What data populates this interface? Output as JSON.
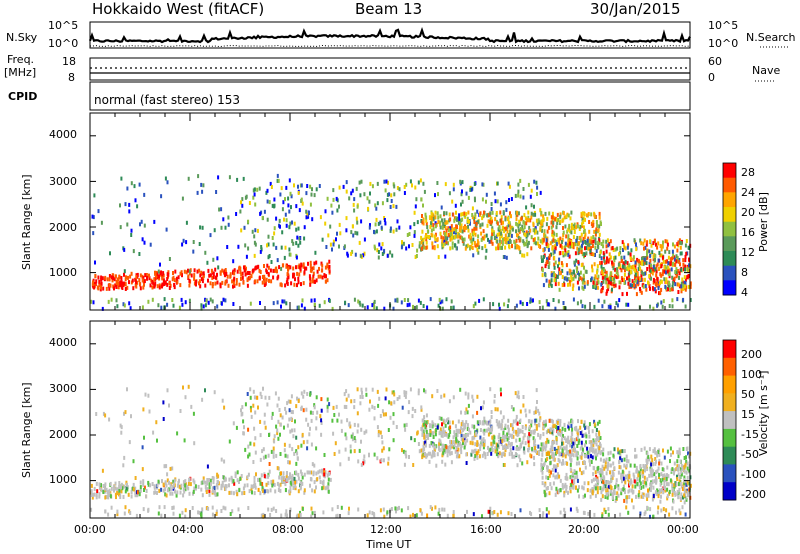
{
  "header": {
    "station": "Hokkaido West (fitACF)",
    "beam": "Beam 13",
    "date": "30/Jan/2015"
  },
  "top_panels": {
    "nsky_label": "N.Sky",
    "nsky_ticks": [
      "10^5",
      "10^0"
    ],
    "nsearch_label": "N.Search",
    "nsearch_ticks": [
      "10^5",
      "10^0"
    ],
    "freq_label_1": "Freq.",
    "freq_label_2": "[MHz]",
    "freq_ticks": [
      "18",
      "8"
    ],
    "nave_label": "Nave",
    "nave_ticks": [
      "60",
      "0"
    ],
    "cpid_label": "CPID",
    "cpid_text": "normal (fast stereo) 153"
  },
  "colors": {
    "power": [
      "#0000ff",
      "#2a52be",
      "#2e8b57",
      "#5a9a5a",
      "#90c040",
      "#f0d000",
      "#ffa500",
      "#ff5a00",
      "#ff0000"
    ],
    "velocity": [
      "#0000c8",
      "#2a52be",
      "#2e8b57",
      "#55c040",
      "#c0c0c0",
      "#f0b020",
      "#ffa000",
      "#ff6000",
      "#ff0000"
    ]
  },
  "chart_data": [
    {
      "type": "heatmap",
      "panel": "power",
      "ylabel": "Slant Range [km]",
      "ylim": [
        180,
        4500
      ],
      "yticks": [
        "4000",
        "3000",
        "2000",
        "1000"
      ],
      "xlim": [
        "00:00",
        "24:00"
      ],
      "colorbar_label": "Power [dB]",
      "colorbar_ticks": [
        "28",
        "24",
        "20",
        "16",
        "12",
        "8",
        "4"
      ]
    },
    {
      "type": "heatmap",
      "panel": "velocity",
      "ylabel": "Slant Range [km]",
      "ylim": [
        180,
        4500
      ],
      "yticks": [
        "4000",
        "3000",
        "2000",
        "1000"
      ],
      "xlim": [
        "00:00",
        "24:00"
      ],
      "colorbar_label": "Velocity [m s⁻¹]",
      "colorbar_ticks": [
        "200",
        "100",
        "50",
        "15",
        "-15",
        "-50",
        "-100",
        "-200"
      ]
    }
  ],
  "xaxis": {
    "ticks": [
      "00:00",
      "04:00",
      "08:00",
      "12:00",
      "16:00",
      "20:00",
      "00:00"
    ],
    "label": "Time UT"
  }
}
